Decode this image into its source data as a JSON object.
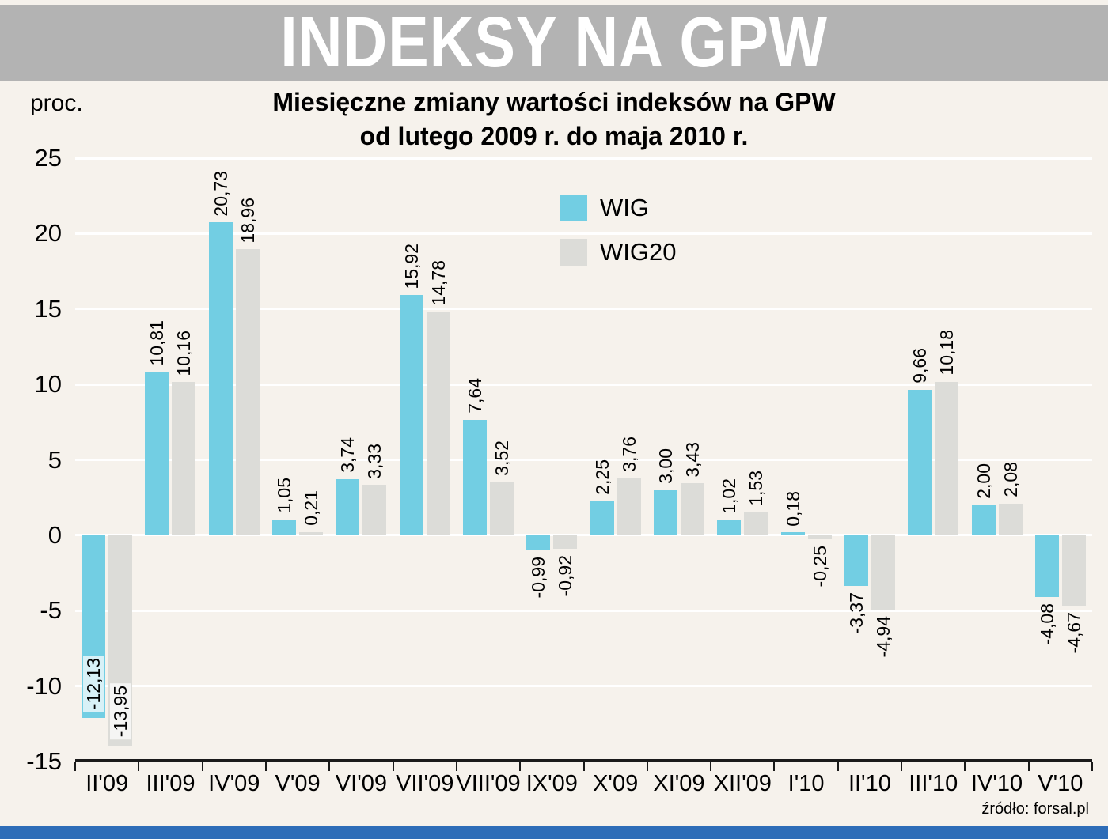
{
  "header": {
    "title": "INDEKSY NA GPW"
  },
  "chart": {
    "title_line1": "Miesięczne zmiany wartości indeksów na GPW",
    "title_line2": "od lutego 2009 r. do maja 2010 r.",
    "ylabel": "proc."
  },
  "legend": [
    {
      "label": "WIG",
      "color": "#72cee3"
    },
    {
      "label": "WIG20",
      "color": "#dcdcd8"
    }
  ],
  "footer": {
    "source": "źródło: forsal.pl"
  },
  "colors": {
    "background": "#f6f2ec",
    "banner": "#b3b3b3",
    "footer_bar": "#2e6db8",
    "grid": "#ffffff",
    "axis": "#1a1a1a"
  },
  "chart_data": {
    "type": "bar",
    "title": "Miesięczne zmiany wartości indeksów na GPW od lutego 2009 r. do maja 2010 r.",
    "xlabel": "",
    "ylabel": "proc.",
    "categories": [
      "II'09",
      "III'09",
      "IV'09",
      "V'09",
      "VI'09",
      "VII'09",
      "VIII'09",
      "IX'09",
      "X'09",
      "XI'09",
      "XII'09",
      "I'10",
      "II'10",
      "III'10",
      "IV'10",
      "V'10"
    ],
    "series": [
      {
        "name": "WIG",
        "color": "#72cee3",
        "values": [
          -12.13,
          10.81,
          20.73,
          1.05,
          3.74,
          15.92,
          7.64,
          -0.99,
          2.25,
          3.0,
          1.02,
          0.18,
          -3.37,
          9.66,
          2.0,
          -4.08
        ]
      },
      {
        "name": "WIG20",
        "color": "#dcdcd8",
        "values": [
          -13.95,
          10.16,
          18.96,
          0.21,
          3.33,
          14.78,
          3.52,
          -0.92,
          3.76,
          3.43,
          1.53,
          -0.25,
          -4.94,
          10.18,
          2.08,
          -4.67
        ]
      }
    ],
    "ylim": [
      -15,
      25
    ],
    "yticks": [
      25,
      20,
      15,
      10,
      5,
      0,
      -5,
      -10,
      -15
    ],
    "grid": true,
    "legend_position": "top-center",
    "value_labels_rotated": true,
    "decimal_separator": ","
  }
}
